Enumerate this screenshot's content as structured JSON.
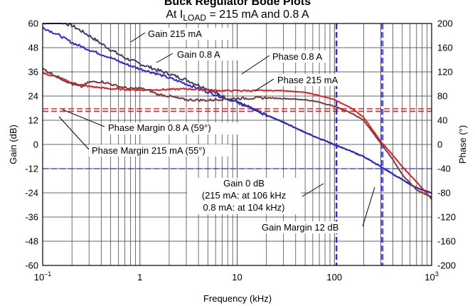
{
  "chart_data": {
    "type": "line",
    "title": "Buck Regulator Bode Plots",
    "subtitle_prefix": "At I",
    "subtitle_sub": "LOAD",
    "subtitle_suffix": " = 215 mA and 0.8 A",
    "xlabel": "Frequency (kHz)",
    "ylabel_left": "Gain (dB)",
    "ylabel_right": "Phase (°)",
    "x_scale": "log",
    "xlim": [
      0.1,
      1000
    ],
    "ylim_left": [
      -60,
      60
    ],
    "ylim_right": [
      -200,
      200
    ],
    "grid": true,
    "x_ticks": [
      {
        "value": 0.1,
        "base": "10",
        "exp": "–1"
      },
      {
        "value": 1,
        "label": "1"
      },
      {
        "value": 10,
        "label": "10"
      },
      {
        "value": 100,
        "label": "100"
      },
      {
        "value": 1000,
        "base": "10",
        "exp": "3"
      }
    ],
    "y_ticks_left": [
      60,
      48,
      36,
      24,
      12,
      0,
      -12,
      -24,
      -36,
      -48,
      -60
    ],
    "y_ticks_right": [
      200,
      160,
      120,
      80,
      40,
      0,
      -40,
      -80,
      -120,
      -160,
      -200
    ],
    "series": [
      {
        "name": "Gain 215 mA",
        "axis": "left",
        "color": "#4b3a6b",
        "points": [
          [
            0.1,
            60
          ],
          [
            0.13,
            62
          ],
          [
            0.2,
            59
          ],
          [
            0.3,
            54
          ],
          [
            0.5,
            47
          ],
          [
            0.7,
            43
          ],
          [
            1,
            40
          ],
          [
            1.5,
            37
          ],
          [
            2,
            35
          ],
          [
            3,
            32
          ],
          [
            5,
            27.5
          ],
          [
            7,
            24
          ],
          [
            10,
            21
          ],
          [
            20,
            14.5
          ],
          [
            30,
            11
          ],
          [
            50,
            6
          ],
          [
            70,
            3
          ],
          [
            100,
            0
          ],
          [
            200,
            -6
          ],
          [
            300,
            -11
          ],
          [
            500,
            -17.5
          ],
          [
            700,
            -21.5
          ],
          [
            1000,
            -24
          ]
        ]
      },
      {
        "name": "Gain 0.8 A",
        "axis": "left",
        "color": "#2a2ad4",
        "points": [
          [
            0.1,
            58
          ],
          [
            0.15,
            54
          ],
          [
            0.2,
            50.5
          ],
          [
            0.3,
            47
          ],
          [
            0.5,
            43
          ],
          [
            0.7,
            40
          ],
          [
            1,
            37.5
          ],
          [
            1.5,
            35
          ],
          [
            2,
            33
          ],
          [
            3,
            30
          ],
          [
            5,
            26
          ],
          [
            7,
            23.5
          ],
          [
            10,
            21
          ],
          [
            20,
            14.5
          ],
          [
            30,
            11
          ],
          [
            50,
            6
          ],
          [
            70,
            3
          ],
          [
            100,
            0
          ],
          [
            200,
            -6
          ],
          [
            300,
            -11
          ],
          [
            500,
            -17.5
          ],
          [
            700,
            -21.5
          ],
          [
            1000,
            -24
          ]
        ]
      },
      {
        "name": "Phase 0.8 A",
        "axis": "right",
        "color": "#e02020",
        "points": [
          [
            0.1,
            118
          ],
          [
            0.15,
            110
          ],
          [
            0.2,
            102
          ],
          [
            0.3,
            96
          ],
          [
            0.5,
            92
          ],
          [
            1,
            90
          ],
          [
            2,
            91
          ],
          [
            3,
            92
          ],
          [
            5,
            90
          ],
          [
            7,
            89
          ],
          [
            10,
            89
          ],
          [
            20,
            89
          ],
          [
            30,
            89
          ],
          [
            50,
            86
          ],
          [
            70,
            81
          ],
          [
            100,
            74
          ],
          [
            150,
            60
          ],
          [
            200,
            45
          ],
          [
            300,
            5
          ],
          [
            400,
            -18
          ],
          [
            500,
            -37
          ],
          [
            700,
            -62
          ],
          [
            1000,
            -90
          ]
        ]
      },
      {
        "name": "Phase 215 mA",
        "axis": "right",
        "color": "#7a3a3a",
        "points": [
          [
            0.1,
            125
          ],
          [
            0.15,
            110
          ],
          [
            0.2,
            100
          ],
          [
            0.25,
            95
          ],
          [
            0.3,
            103
          ],
          [
            0.4,
            104
          ],
          [
            0.5,
            100
          ],
          [
            0.6,
            96
          ],
          [
            0.8,
            92
          ],
          [
            1,
            93
          ],
          [
            1.3,
            88
          ],
          [
            1.5,
            83
          ],
          [
            2,
            80
          ],
          [
            2.5,
            76
          ],
          [
            3,
            74
          ],
          [
            5,
            73
          ],
          [
            7,
            75
          ],
          [
            10,
            76
          ],
          [
            20,
            77
          ],
          [
            30,
            76
          ],
          [
            50,
            74
          ],
          [
            70,
            70
          ],
          [
            100,
            63
          ],
          [
            150,
            52
          ],
          [
            200,
            40
          ],
          [
            300,
            2
          ],
          [
            400,
            -25
          ],
          [
            500,
            -50
          ],
          [
            700,
            -75
          ],
          [
            1000,
            -87
          ]
        ]
      }
    ],
    "reference_lines": [
      {
        "kind": "horizontal",
        "axis": "right",
        "value": 59,
        "style": "dashed",
        "color": "#e02020"
      },
      {
        "kind": "horizontal",
        "axis": "right",
        "value": 55,
        "style": "dashed",
        "color": "#e02020"
      },
      {
        "kind": "horizontal",
        "axis": "left",
        "value": -12,
        "style": "dashed",
        "color": "#2a2ad4"
      },
      {
        "kind": "vertical",
        "value": 104,
        "style": "dashed",
        "color": "#2a2ad4"
      },
      {
        "kind": "vertical",
        "value": 106,
        "style": "dashed",
        "color": "#2a2ad4"
      },
      {
        "kind": "vertical",
        "value": 305,
        "style": "dashed",
        "color": "#2a2ad4"
      },
      {
        "kind": "vertical",
        "value": 315,
        "style": "dashed",
        "color": "#2a2ad4"
      }
    ],
    "annotations": [
      {
        "id": "gain215",
        "lines": [
          "Gain 215 mA"
        ]
      },
      {
        "id": "gain08",
        "lines": [
          "Gain 0.8 A"
        ]
      },
      {
        "id": "phase08",
        "lines": [
          "Phase 0.8 A"
        ]
      },
      {
        "id": "phase215",
        "lines": [
          "Phase 215 mA"
        ]
      },
      {
        "id": "pm08",
        "lines": [
          "Phase Margin 0.8 A (59°)"
        ]
      },
      {
        "id": "pm215",
        "lines": [
          "Phase Margin 215 mA (55°)"
        ]
      },
      {
        "id": "gain0",
        "lines": [
          "Gain 0 dB",
          "(215 mA: at 106 kHz",
          "0.8 mA: at 104 kHz)"
        ]
      },
      {
        "id": "gm",
        "lines": [
          "Gain Margin 12 dB"
        ]
      }
    ]
  }
}
